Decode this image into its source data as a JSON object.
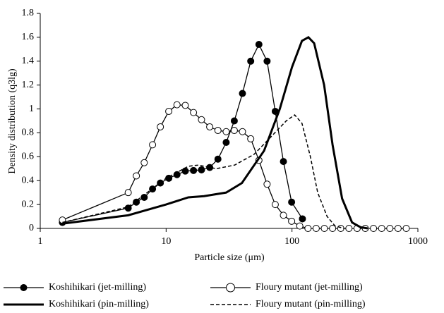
{
  "chart_data": {
    "type": "line",
    "xlabel": "Particle size (μm)",
    "ylabel": "Density distribution (q3lg)",
    "xscale": "log",
    "xlim": [
      1,
      1000
    ],
    "xticks": [
      1,
      10,
      100,
      1000
    ],
    "ylim": [
      0,
      1.8
    ],
    "yticks": [
      0,
      0.2,
      0.4,
      0.6,
      0.8,
      1,
      1.2,
      1.4,
      1.6,
      1.8
    ],
    "grid": false,
    "legend": "bottom",
    "series": [
      {
        "name": "Koshihikari (jet-milling)",
        "color": "#000000",
        "marker": "filled",
        "dash": "solid",
        "width": 1.3,
        "x": [
          1.5,
          5,
          5.8,
          6.7,
          7.8,
          9,
          10.5,
          12.2,
          14.2,
          16.5,
          19.1,
          22.2,
          25.8,
          30,
          34.8,
          40.4,
          47,
          54.6,
          63.4,
          73.6,
          85.5,
          99.3,
          121
        ],
        "values": [
          0.05,
          0.17,
          0.22,
          0.26,
          0.33,
          0.38,
          0.42,
          0.45,
          0.48,
          0.485,
          0.49,
          0.51,
          0.58,
          0.72,
          0.9,
          1.13,
          1.4,
          1.54,
          1.4,
          0.98,
          0.56,
          0.22,
          0.08
        ]
      },
      {
        "name": "Floury mutant (jet-milling)",
        "color": "#000000",
        "marker": "open",
        "dash": "solid",
        "width": 1.3,
        "x": [
          1.5,
          5,
          5.8,
          6.7,
          7.8,
          9,
          10.5,
          12.2,
          14.2,
          16.5,
          19.1,
          22.2,
          25.8,
          30,
          34.8,
          40.4,
          47,
          54.6,
          63.4,
          73.6,
          85.5,
          99.3,
          115.3,
          134,
          155.6,
          180.7,
          210,
          243.9,
          283.3,
          329.1,
          382.2,
          444,
          515.6,
          599,
          695.8,
          808.2
        ],
        "values": [
          0.07,
          0.3,
          0.44,
          0.55,
          0.7,
          0.85,
          0.98,
          1.035,
          1.03,
          0.97,
          0.91,
          0.85,
          0.82,
          0.81,
          0.82,
          0.81,
          0.75,
          0.57,
          0.37,
          0.2,
          0.11,
          0.06,
          0.02,
          0,
          0,
          0,
          0,
          0,
          0,
          0,
          0,
          0,
          0,
          0,
          0,
          0
        ]
      },
      {
        "name": "Koshihikari (pin-milling)",
        "color": "#000000",
        "marker": "none",
        "dash": "solid",
        "width": 3,
        "x": [
          1.5,
          5,
          10,
          15,
          20,
          30,
          40,
          60,
          80,
          100,
          120,
          135,
          150,
          180,
          210,
          250,
          300,
          350,
          400
        ],
        "values": [
          0.04,
          0.11,
          0.2,
          0.26,
          0.27,
          0.3,
          0.38,
          0.65,
          1.0,
          1.35,
          1.57,
          1.6,
          1.55,
          1.2,
          0.7,
          0.25,
          0.05,
          0.01,
          0
        ]
      },
      {
        "name": "Floury mutant (pin-milling)",
        "color": "#000000",
        "marker": "none",
        "dash": "dashed",
        "width": 1.5,
        "x": [
          1.5,
          5,
          10,
          15,
          18,
          25,
          35,
          50,
          70,
          90,
          105,
          120,
          140,
          160,
          190,
          220,
          260
        ],
        "values": [
          0.05,
          0.18,
          0.42,
          0.52,
          0.53,
          0.5,
          0.53,
          0.62,
          0.78,
          0.9,
          0.95,
          0.88,
          0.6,
          0.3,
          0.1,
          0.02,
          0
        ]
      }
    ]
  }
}
